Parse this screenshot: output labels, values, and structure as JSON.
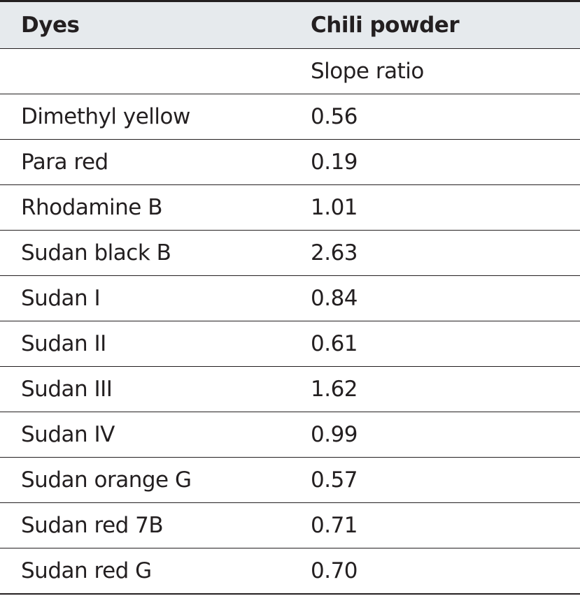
{
  "table": {
    "header": [
      "Dyes",
      "Chili powder"
    ],
    "subheader": "Slope ratio",
    "rows": [
      [
        "Dimethyl yellow",
        "0.56"
      ],
      [
        "Para red",
        "0.19"
      ],
      [
        "Rhodamine B",
        "1.01"
      ],
      [
        "Sudan black B",
        "2.63"
      ],
      [
        "Sudan I",
        "0.84"
      ],
      [
        "Sudan II",
        "0.61"
      ],
      [
        "Sudan III",
        "1.62"
      ],
      [
        "Sudan IV",
        "0.99"
      ],
      [
        "Sudan orange G",
        "0.57"
      ],
      [
        "Sudan red 7B",
        "0.71"
      ],
      [
        "Sudan red G",
        "0.70"
      ]
    ]
  }
}
